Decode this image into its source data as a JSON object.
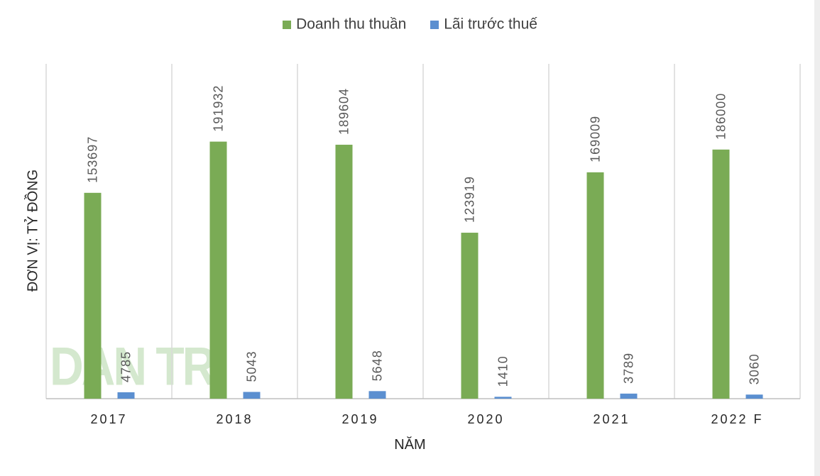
{
  "legend": {
    "series1": "Doanh thu thuần",
    "series2": "Lãi trước thuế"
  },
  "watermark": "DAN TRI",
  "colors": {
    "series1": "#7aab55",
    "series2": "#5b8fd0",
    "text": "#595959",
    "grid": "#d9d9d9"
  },
  "chart_data": {
    "type": "bar",
    "categories": [
      "2017",
      "2018",
      "2019",
      "2020",
      "2021",
      "2022 F"
    ],
    "series": [
      {
        "name": "Doanh thu thuần",
        "values": [
          153697,
          191932,
          189604,
          123919,
          169009,
          186000
        ]
      },
      {
        "name": "Lãi trước thuế",
        "values": [
          4785,
          5043,
          5648,
          1410,
          3789,
          3060
        ]
      }
    ],
    "ylabel": "ĐƠN VỊ: TỶ ĐỒNG",
    "xlabel": "NĂM",
    "ylim": [
      0,
      250000
    ],
    "legend_position": "top-center",
    "data_labels": "vertical, above bars"
  }
}
